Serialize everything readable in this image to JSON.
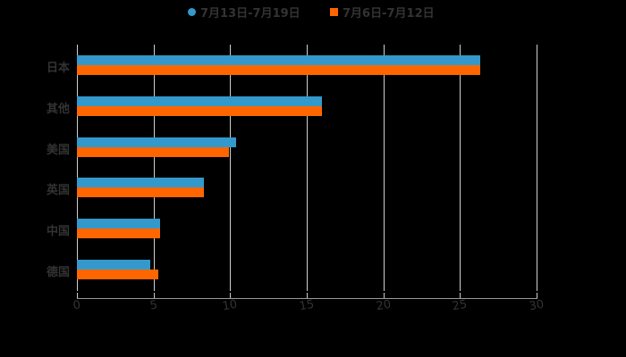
{
  "chart_data": {
    "type": "bar",
    "orientation": "horizontal",
    "title": "",
    "xlabel": "",
    "ylabel": "",
    "categories": [
      "日本",
      "其他",
      "美国",
      "英国",
      "中国",
      "德国"
    ],
    "series": [
      {
        "name": "7月13日-7月19日",
        "color": "#3399cc",
        "values": [
          26.3,
          16.0,
          10.4,
          8.3,
          5.4,
          4.8
        ]
      },
      {
        "name": "7月6日-7月12日",
        "color": "#ff6600",
        "values": [
          26.3,
          16.0,
          9.9,
          8.3,
          5.4,
          5.3
        ]
      }
    ],
    "xlim": [
      0,
      30
    ],
    "x_ticks": [
      "0",
      "5",
      "10",
      "15",
      "20",
      "25",
      "30"
    ],
    "grid": true,
    "legend_position": "top"
  },
  "legend": [
    {
      "label": "7月13日-7月19日",
      "color": "#3399cc",
      "shape": "circle"
    },
    {
      "label": "7月6日-7月12日",
      "color": "#ff6600",
      "shape": "square"
    }
  ]
}
